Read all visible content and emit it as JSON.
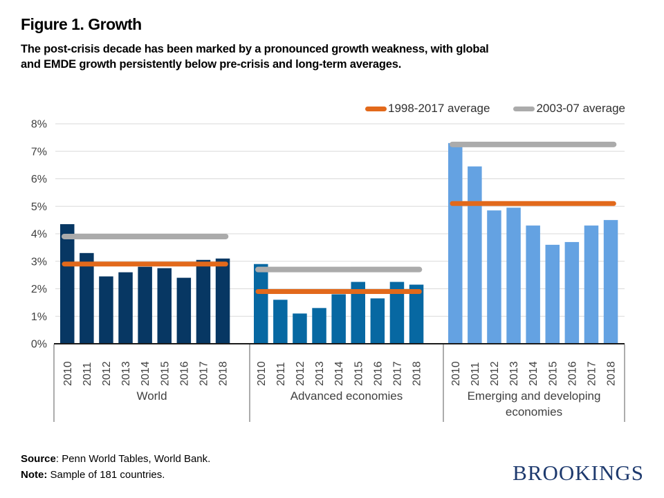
{
  "header": {
    "title": "Figure 1. Growth",
    "subtitle_line1": "The post-crisis decade has been marked by a pronounced growth weakness, with global",
    "subtitle_line2": "and EMDE growth persistently below pre-crisis and long-term averages."
  },
  "chart_data": {
    "type": "bar",
    "title": "Figure 1. Growth",
    "categories": [
      "2010",
      "2011",
      "2012",
      "2013",
      "2014",
      "2015",
      "2016",
      "2017",
      "2018"
    ],
    "ylabel": "",
    "ylim": [
      0,
      8
    ],
    "yticks": [
      0,
      1,
      2,
      3,
      4,
      5,
      6,
      7,
      8
    ],
    "ytick_suffix": "%",
    "grid": true,
    "legend_position": "top-right",
    "groups": [
      {
        "label": "World",
        "bar_color": "#073763",
        "values": [
          4.35,
          3.3,
          2.45,
          2.6,
          2.8,
          2.75,
          2.4,
          3.05,
          3.1
        ],
        "avg_1998_2017": 2.9,
        "avg_2003_07": 3.9
      },
      {
        "label": "Advanced economies",
        "bar_color": "#0768A2",
        "values": [
          2.9,
          1.6,
          1.1,
          1.3,
          1.8,
          2.25,
          1.65,
          2.25,
          2.15
        ],
        "avg_1998_2017": 1.9,
        "avg_2003_07": 2.7
      },
      {
        "label": "Emerging and developing economies",
        "bar_color": "#64A2E2",
        "values": [
          7.3,
          6.45,
          4.85,
          4.95,
          4.3,
          3.6,
          3.7,
          4.3,
          4.5
        ],
        "avg_1998_2017": 5.1,
        "avg_2003_07": 7.25
      }
    ],
    "series_lines": [
      {
        "name": "1998-2017 average",
        "key": "avg_1998_2017",
        "color": "#E2691B"
      },
      {
        "name": "2003-07 average",
        "key": "avg_2003_07",
        "color": "#ABABAB"
      }
    ],
    "colors": {
      "gridline": "#D9D9D9",
      "axis": "#1A1A1A",
      "labels": "#404040"
    }
  },
  "footer": {
    "source_label": "Source",
    "source_text": ": Penn World Tables, World Bank.",
    "note_label": "Note:",
    "note_text": " Sample of 181 countries.",
    "logo": "BROOKINGS",
    "logo_color": "#1E3A6E"
  }
}
